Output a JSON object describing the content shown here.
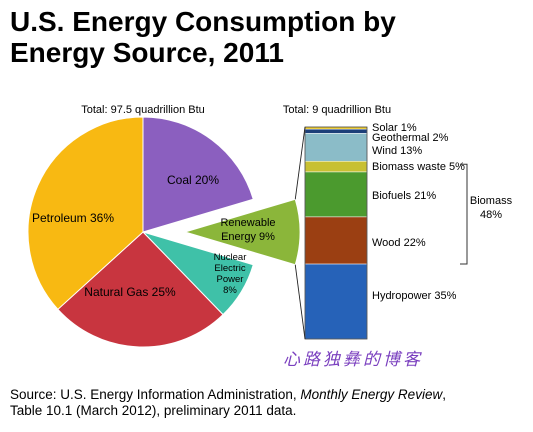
{
  "title_line1": "U.S. Energy Consumption by",
  "title_line2": "Energy Source, 2011",
  "source": {
    "prefix": "Source: U.S. Energy Information Administration, ",
    "italic": "Monthly Energy Review",
    "suffix": ",",
    "line2": "Table 10.1 (March 2012), preliminary 2011 data."
  },
  "watermark": "心路独彝的博客",
  "chart_data": [
    {
      "type": "pie",
      "total_label": "Total:  97.5 quadrillion Btu",
      "slices": [
        {
          "label": "Coal 20%",
          "value": 20,
          "color": "#8b5fbf"
        },
        {
          "label": "Renewable Energy 9%",
          "label_lines": [
            "Renewable",
            "Energy 9%"
          ],
          "value": 9,
          "color": "#8bb63a"
        },
        {
          "label": "Nuclear Electric Power 8%",
          "label_lines": [
            "Nuclear",
            "Electric",
            "Power",
            "8%"
          ],
          "value": 8,
          "color": "#3fc1a8"
        },
        {
          "label": "Natural Gas 25%",
          "value": 25,
          "color": "#c8353f"
        },
        {
          "label": "Petroleum 36%",
          "value": 36,
          "color": "#f8b912"
        }
      ]
    },
    {
      "type": "bar",
      "stacked": true,
      "total_label": "Total:  9 quadrillion Btu",
      "segments": [
        {
          "label": "Solar  1%",
          "value": 1,
          "color": "#ebc416"
        },
        {
          "label": "Geothermal  2%",
          "value": 2,
          "color": "#1c3f78"
        },
        {
          "label": "Wind  13%",
          "value": 13,
          "color": "#8bbcc8"
        },
        {
          "label": "Biomass waste  5%",
          "value": 5,
          "color": "#c8c032"
        },
        {
          "label": "Biofuels  21%",
          "value": 21,
          "color": "#4b9a2e"
        },
        {
          "label": "Wood  22%",
          "value": 22,
          "color": "#9b3f12"
        },
        {
          "label": "Hydropower  35%",
          "value": 35,
          "color": "#2662b8"
        }
      ],
      "group_label": [
        "Biomass",
        "48%"
      ]
    }
  ]
}
